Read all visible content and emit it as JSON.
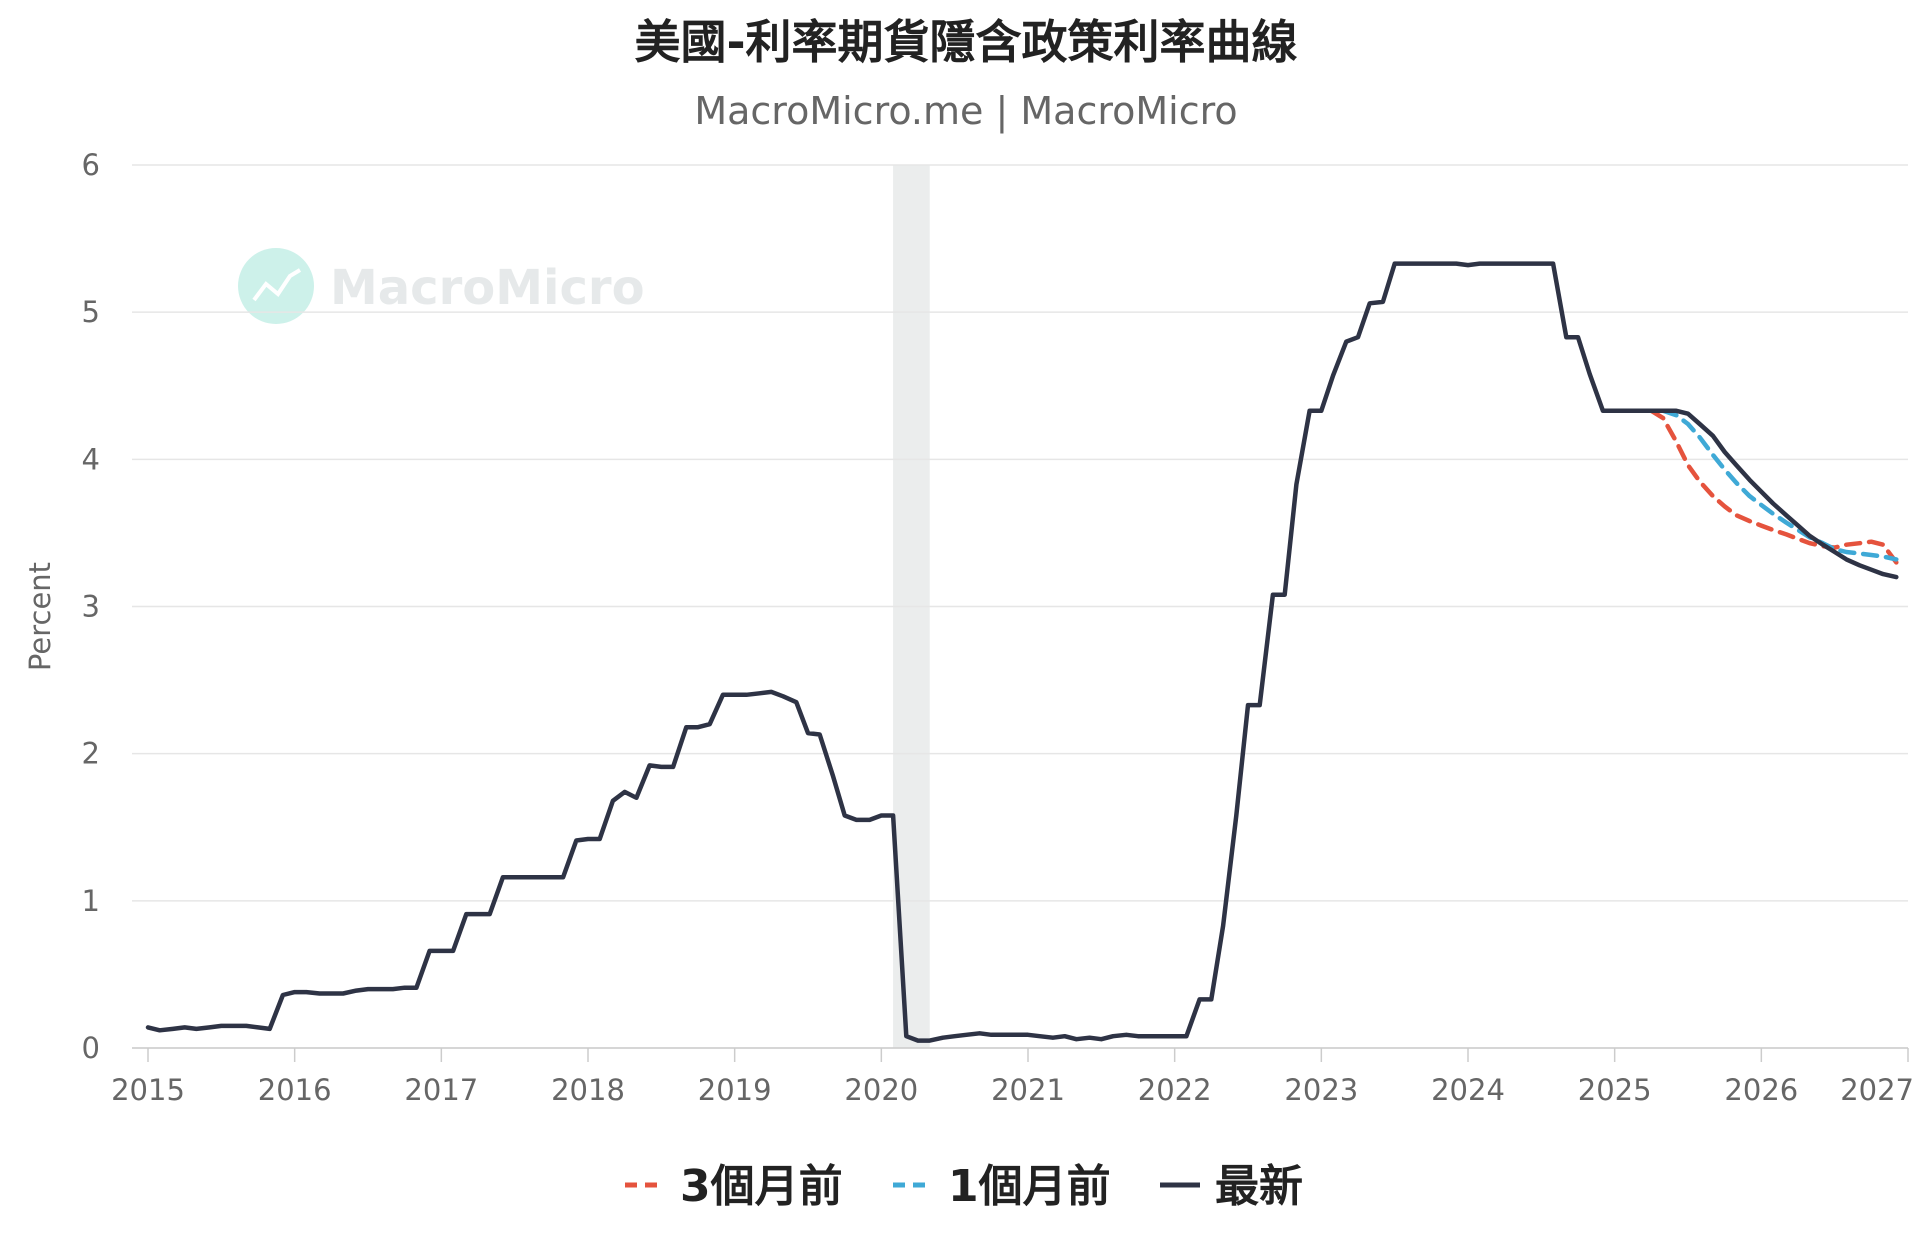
{
  "title": "美國-利率期貨隱含政策利率曲線",
  "subtitle": "MacroMicro.me | MacroMicro",
  "watermark": {
    "text": "MacroMicro",
    "color": "#7fd9c8"
  },
  "chart_data": {
    "type": "line",
    "ylabel": "Percent",
    "ylim": [
      0,
      6
    ],
    "xlim": [
      2015.0,
      2027.0
    ],
    "yticks": [
      "0",
      "1",
      "2",
      "3",
      "4",
      "5",
      "6"
    ],
    "xticks": [
      "2015",
      "2016",
      "2017",
      "2018",
      "2019",
      "2020",
      "2021",
      "2022",
      "2023",
      "2024",
      "2025",
      "2026",
      "2027"
    ],
    "grid": true,
    "legend_position": "bottom",
    "shaded_ranges": [
      [
        2020.08,
        2020.33
      ]
    ],
    "shade_color": "#ebeded",
    "series": [
      {
        "name": "3個月前",
        "color": "#e5533d",
        "dash": true,
        "points": [
          [
            2025.25,
            4.33
          ],
          [
            2025.33,
            4.28
          ],
          [
            2025.42,
            4.12
          ],
          [
            2025.5,
            3.96
          ],
          [
            2025.58,
            3.85
          ],
          [
            2025.67,
            3.75
          ],
          [
            2025.75,
            3.68
          ],
          [
            2025.83,
            3.62
          ],
          [
            2025.92,
            3.58
          ],
          [
            2026.0,
            3.55
          ],
          [
            2026.08,
            3.52
          ],
          [
            2026.17,
            3.49
          ],
          [
            2026.25,
            3.46
          ],
          [
            2026.33,
            3.43
          ],
          [
            2026.42,
            3.41
          ],
          [
            2026.5,
            3.4
          ],
          [
            2026.58,
            3.42
          ],
          [
            2026.67,
            3.43
          ],
          [
            2026.75,
            3.44
          ],
          [
            2026.83,
            3.42
          ],
          [
            2026.92,
            3.3
          ]
        ]
      },
      {
        "name": "1個月前",
        "color": "#3fa9d6",
        "dash": true,
        "points": [
          [
            2025.33,
            4.33
          ],
          [
            2025.42,
            4.3
          ],
          [
            2025.5,
            4.24
          ],
          [
            2025.58,
            4.15
          ],
          [
            2025.67,
            4.03
          ],
          [
            2025.75,
            3.93
          ],
          [
            2025.83,
            3.84
          ],
          [
            2025.92,
            3.75
          ],
          [
            2026.0,
            3.69
          ],
          [
            2026.08,
            3.63
          ],
          [
            2026.17,
            3.57
          ],
          [
            2026.25,
            3.52
          ],
          [
            2026.33,
            3.47
          ],
          [
            2026.42,
            3.43
          ],
          [
            2026.5,
            3.39
          ],
          [
            2026.58,
            3.37
          ],
          [
            2026.67,
            3.36
          ],
          [
            2026.75,
            3.35
          ],
          [
            2026.83,
            3.34
          ],
          [
            2026.92,
            3.32
          ]
        ]
      },
      {
        "name": "最新",
        "color": "#2e3345",
        "dash": false,
        "points": [
          [
            2015.0,
            0.14
          ],
          [
            2015.08,
            0.12
          ],
          [
            2015.17,
            0.13
          ],
          [
            2015.25,
            0.14
          ],
          [
            2015.33,
            0.13
          ],
          [
            2015.42,
            0.14
          ],
          [
            2015.5,
            0.15
          ],
          [
            2015.58,
            0.15
          ],
          [
            2015.67,
            0.15
          ],
          [
            2015.75,
            0.14
          ],
          [
            2015.83,
            0.13
          ],
          [
            2015.92,
            0.36
          ],
          [
            2016.0,
            0.38
          ],
          [
            2016.08,
            0.38
          ],
          [
            2016.17,
            0.37
          ],
          [
            2016.25,
            0.37
          ],
          [
            2016.33,
            0.37
          ],
          [
            2016.42,
            0.39
          ],
          [
            2016.5,
            0.4
          ],
          [
            2016.58,
            0.4
          ],
          [
            2016.67,
            0.4
          ],
          [
            2016.75,
            0.41
          ],
          [
            2016.83,
            0.41
          ],
          [
            2016.92,
            0.66
          ],
          [
            2017.0,
            0.66
          ],
          [
            2017.08,
            0.66
          ],
          [
            2017.17,
            0.91
          ],
          [
            2017.25,
            0.91
          ],
          [
            2017.33,
            0.91
          ],
          [
            2017.42,
            1.16
          ],
          [
            2017.5,
            1.16
          ],
          [
            2017.58,
            1.16
          ],
          [
            2017.67,
            1.16
          ],
          [
            2017.75,
            1.16
          ],
          [
            2017.83,
            1.16
          ],
          [
            2017.92,
            1.41
          ],
          [
            2018.0,
            1.42
          ],
          [
            2018.08,
            1.42
          ],
          [
            2018.17,
            1.68
          ],
          [
            2018.25,
            1.74
          ],
          [
            2018.33,
            1.7
          ],
          [
            2018.42,
            1.92
          ],
          [
            2018.5,
            1.91
          ],
          [
            2018.58,
            1.91
          ],
          [
            2018.67,
            2.18
          ],
          [
            2018.75,
            2.18
          ],
          [
            2018.83,
            2.2
          ],
          [
            2018.92,
            2.4
          ],
          [
            2019.0,
            2.4
          ],
          [
            2019.08,
            2.4
          ],
          [
            2019.17,
            2.41
          ],
          [
            2019.25,
            2.42
          ],
          [
            2019.33,
            2.39
          ],
          [
            2019.42,
            2.35
          ],
          [
            2019.5,
            2.14
          ],
          [
            2019.58,
            2.13
          ],
          [
            2019.67,
            1.85
          ],
          [
            2019.75,
            1.58
          ],
          [
            2019.83,
            1.55
          ],
          [
            2019.92,
            1.55
          ],
          [
            2020.0,
            1.58
          ],
          [
            2020.08,
            1.58
          ],
          [
            2020.17,
            0.08
          ],
          [
            2020.25,
            0.05
          ],
          [
            2020.33,
            0.05
          ],
          [
            2020.42,
            0.07
          ],
          [
            2020.5,
            0.08
          ],
          [
            2020.58,
            0.09
          ],
          [
            2020.67,
            0.1
          ],
          [
            2020.75,
            0.09
          ],
          [
            2020.83,
            0.09
          ],
          [
            2020.92,
            0.09
          ],
          [
            2021.0,
            0.09
          ],
          [
            2021.08,
            0.08
          ],
          [
            2021.17,
            0.07
          ],
          [
            2021.25,
            0.08
          ],
          [
            2021.33,
            0.06
          ],
          [
            2021.42,
            0.07
          ],
          [
            2021.5,
            0.06
          ],
          [
            2021.58,
            0.08
          ],
          [
            2021.67,
            0.09
          ],
          [
            2021.75,
            0.08
          ],
          [
            2021.83,
            0.08
          ],
          [
            2021.92,
            0.08
          ],
          [
            2022.0,
            0.08
          ],
          [
            2022.08,
            0.08
          ],
          [
            2022.17,
            0.33
          ],
          [
            2022.25,
            0.33
          ],
          [
            2022.33,
            0.83
          ],
          [
            2022.42,
            1.58
          ],
          [
            2022.5,
            2.33
          ],
          [
            2022.58,
            2.33
          ],
          [
            2022.67,
            3.08
          ],
          [
            2022.75,
            3.08
          ],
          [
            2022.83,
            3.83
          ],
          [
            2022.92,
            4.33
          ],
          [
            2023.0,
            4.33
          ],
          [
            2023.08,
            4.57
          ],
          [
            2023.17,
            4.8
          ],
          [
            2023.25,
            4.83
          ],
          [
            2023.33,
            5.06
          ],
          [
            2023.42,
            5.07
          ],
          [
            2023.5,
            5.33
          ],
          [
            2023.58,
            5.33
          ],
          [
            2023.67,
            5.33
          ],
          [
            2023.75,
            5.33
          ],
          [
            2023.83,
            5.33
          ],
          [
            2023.92,
            5.33
          ],
          [
            2024.0,
            5.32
          ],
          [
            2024.08,
            5.33
          ],
          [
            2024.17,
            5.33
          ],
          [
            2024.25,
            5.33
          ],
          [
            2024.33,
            5.33
          ],
          [
            2024.42,
            5.33
          ],
          [
            2024.5,
            5.33
          ],
          [
            2024.58,
            5.33
          ],
          [
            2024.67,
            4.83
          ],
          [
            2024.75,
            4.83
          ],
          [
            2024.83,
            4.58
          ],
          [
            2024.92,
            4.33
          ],
          [
            2025.0,
            4.33
          ],
          [
            2025.08,
            4.33
          ],
          [
            2025.17,
            4.33
          ],
          [
            2025.25,
            4.33
          ],
          [
            2025.33,
            4.33
          ],
          [
            2025.42,
            4.33
          ],
          [
            2025.5,
            4.31
          ],
          [
            2025.58,
            4.24
          ],
          [
            2025.67,
            4.16
          ],
          [
            2025.75,
            4.05
          ],
          [
            2025.83,
            3.96
          ],
          [
            2025.92,
            3.86
          ],
          [
            2026.0,
            3.78
          ],
          [
            2026.08,
            3.7
          ],
          [
            2026.17,
            3.62
          ],
          [
            2026.25,
            3.55
          ],
          [
            2026.33,
            3.48
          ],
          [
            2026.42,
            3.42
          ],
          [
            2026.5,
            3.37
          ],
          [
            2026.58,
            3.32
          ],
          [
            2026.67,
            3.28
          ],
          [
            2026.75,
            3.25
          ],
          [
            2026.83,
            3.22
          ],
          [
            2026.92,
            3.2
          ]
        ]
      }
    ]
  }
}
